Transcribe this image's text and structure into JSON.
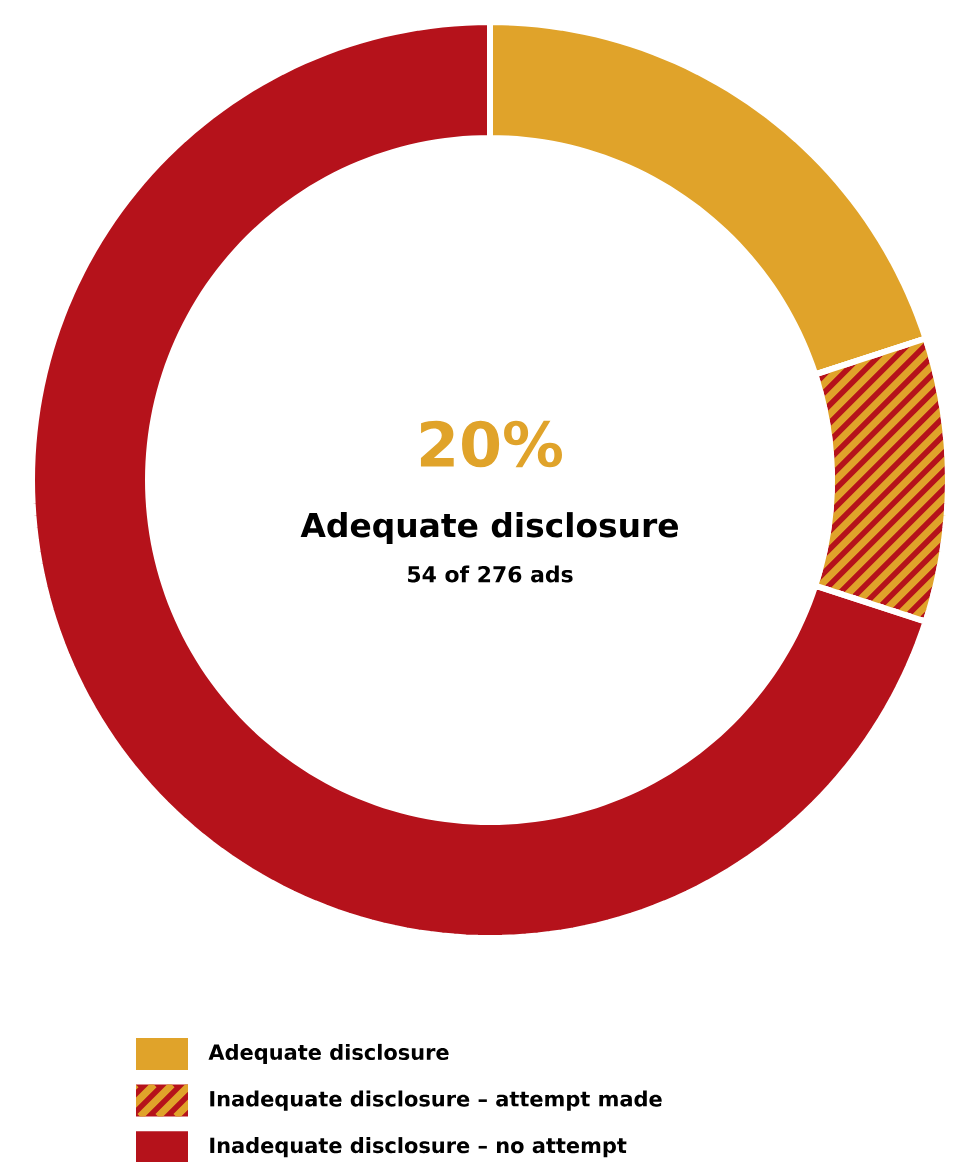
{
  "chart_data": {
    "type": "donut",
    "categories": [
      "Adequate disclosure",
      "Inadequate disclosure – attempt made",
      "Inadequate disclosure – no attempt"
    ],
    "values": [
      20,
      10,
      70
    ],
    "colors": [
      "#e0a32a",
      "#b5121b",
      "#b5121b"
    ],
    "annotations": [
      "20%",
      "Adequate disclosure",
      "54 of 276 ads"
    ],
    "legend": "bottom"
  }
}
